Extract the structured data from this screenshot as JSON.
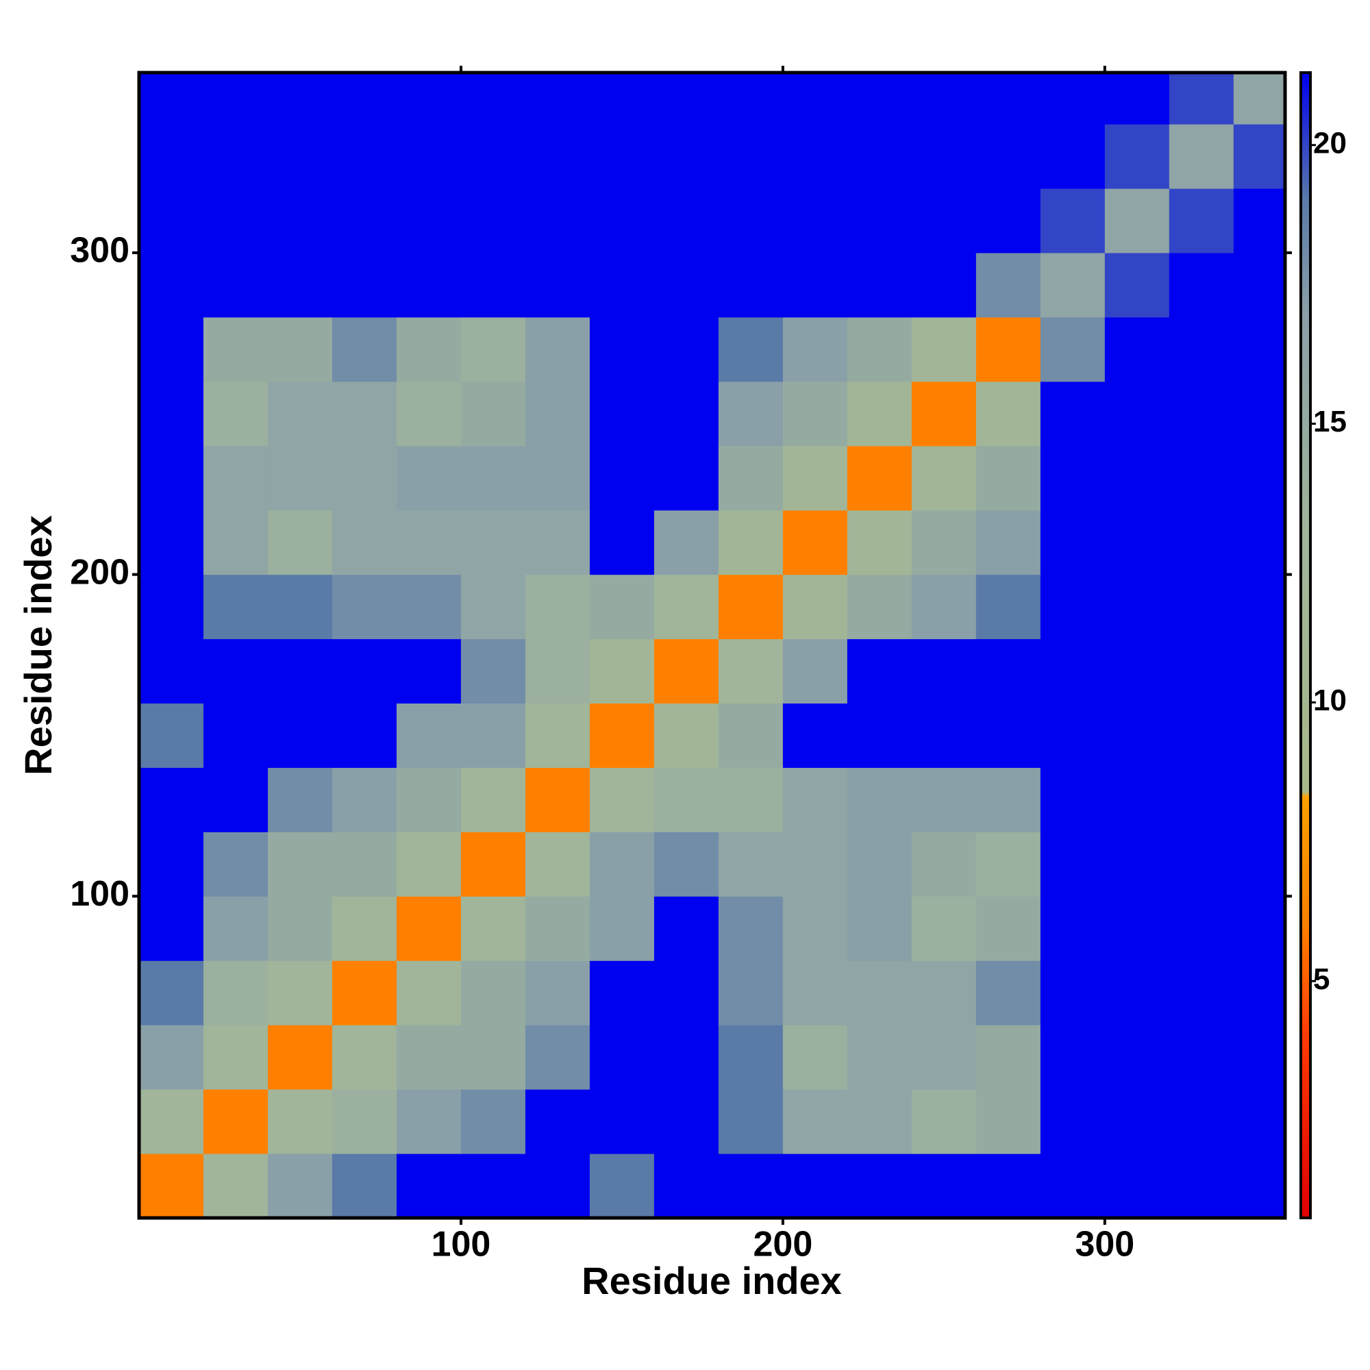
{
  "chart_data": {
    "type": "heatmap",
    "xlabel": "Residue index",
    "ylabel": "Residue index",
    "x_bins": [
      0,
      20,
      40,
      60,
      80,
      100,
      120,
      140,
      160,
      180,
      200,
      220,
      240,
      260,
      280,
      300,
      320,
      340,
      360
    ],
    "y_bins": [
      0,
      20,
      40,
      60,
      80,
      100,
      120,
      140,
      160,
      180,
      200,
      220,
      240,
      260,
      280,
      300,
      320,
      340,
      360
    ],
    "z": [
      [
        6,
        13,
        17,
        19,
        22,
        22,
        22,
        19,
        22,
        22,
        22,
        22,
        22,
        22,
        22,
        22,
        22,
        22
      ],
      [
        13,
        6,
        13,
        14,
        17,
        18,
        22,
        22,
        22,
        19,
        16,
        16,
        14,
        15,
        22,
        22,
        22,
        22
      ],
      [
        17,
        13,
        6,
        13,
        15,
        15,
        18,
        22,
        22,
        19,
        14,
        16,
        16,
        15,
        22,
        22,
        22,
        22
      ],
      [
        19,
        14,
        13,
        6,
        13,
        15,
        17,
        22,
        22,
        18,
        16,
        16,
        16,
        18,
        22,
        22,
        22,
        22
      ],
      [
        22,
        17,
        15,
        13,
        6,
        13,
        15,
        17,
        22,
        18,
        16,
        17,
        14,
        15,
        22,
        22,
        22,
        22
      ],
      [
        22,
        18,
        15,
        15,
        13,
        6,
        13,
        17,
        18,
        16,
        16,
        17,
        15,
        14,
        22,
        22,
        22,
        22
      ],
      [
        22,
        22,
        18,
        17,
        15,
        13,
        6,
        13,
        14,
        14,
        16,
        17,
        17,
        17,
        22,
        22,
        22,
        22
      ],
      [
        19,
        22,
        22,
        22,
        17,
        17,
        13,
        6,
        12,
        15,
        22,
        22,
        22,
        22,
        22,
        22,
        22,
        22
      ],
      [
        22,
        22,
        22,
        22,
        22,
        18,
        14,
        12,
        6,
        13,
        17,
        22,
        22,
        22,
        22,
        22,
        22,
        22
      ],
      [
        22,
        19,
        19,
        18,
        18,
        16,
        14,
        15,
        13,
        6,
        12,
        15,
        17,
        19,
        22,
        22,
        22,
        22
      ],
      [
        22,
        16,
        14,
        16,
        16,
        16,
        16,
        22,
        17,
        12,
        6,
        12,
        15,
        17,
        22,
        22,
        22,
        22
      ],
      [
        22,
        16,
        16,
        16,
        17,
        17,
        17,
        22,
        22,
        15,
        12,
        6,
        12,
        15,
        22,
        22,
        22,
        22
      ],
      [
        22,
        14,
        16,
        16,
        14,
        15,
        17,
        22,
        22,
        17,
        15,
        12,
        6,
        12,
        22,
        22,
        22,
        22
      ],
      [
        22,
        15,
        15,
        18,
        15,
        14,
        17,
        22,
        22,
        19,
        17,
        15,
        12,
        6,
        18,
        22,
        22,
        22
      ],
      [
        22,
        22,
        22,
        22,
        22,
        22,
        22,
        22,
        22,
        22,
        22,
        22,
        22,
        18,
        16,
        20,
        22,
        22
      ],
      [
        22,
        22,
        22,
        22,
        22,
        22,
        22,
        22,
        22,
        22,
        22,
        22,
        22,
        22,
        20,
        16,
        20,
        22
      ],
      [
        22,
        22,
        22,
        22,
        22,
        22,
        22,
        22,
        22,
        22,
        22,
        22,
        22,
        22,
        22,
        20,
        16,
        20
      ],
      [
        22,
        22,
        22,
        22,
        22,
        22,
        22,
        22,
        22,
        22,
        22,
        22,
        22,
        22,
        22,
        22,
        20,
        16
      ]
    ],
    "xlim": [
      0,
      356
    ],
    "ylim": [
      0,
      356
    ],
    "xticks": [
      100,
      200,
      300
    ],
    "yticks": [
      100,
      200,
      300
    ],
    "clim": [
      0.75,
      21.3
    ],
    "cticks": [
      5,
      10,
      15,
      20
    ],
    "colorscale": [
      {
        "value": 0.75,
        "color": "#e00000"
      },
      {
        "value": 4,
        "color": "#ff3a00"
      },
      {
        "value": 6,
        "color": "#ff8000"
      },
      {
        "value": 8.3,
        "color": "#ffa000"
      },
      {
        "value": 8.4,
        "color": "#a8b88a"
      },
      {
        "value": 13,
        "color": "#a0b59a"
      },
      {
        "value": 17,
        "color": "#8aa0a8"
      },
      {
        "value": 19,
        "color": "#5a7aa8"
      },
      {
        "value": 21.3,
        "color": "#0000f0"
      }
    ]
  }
}
